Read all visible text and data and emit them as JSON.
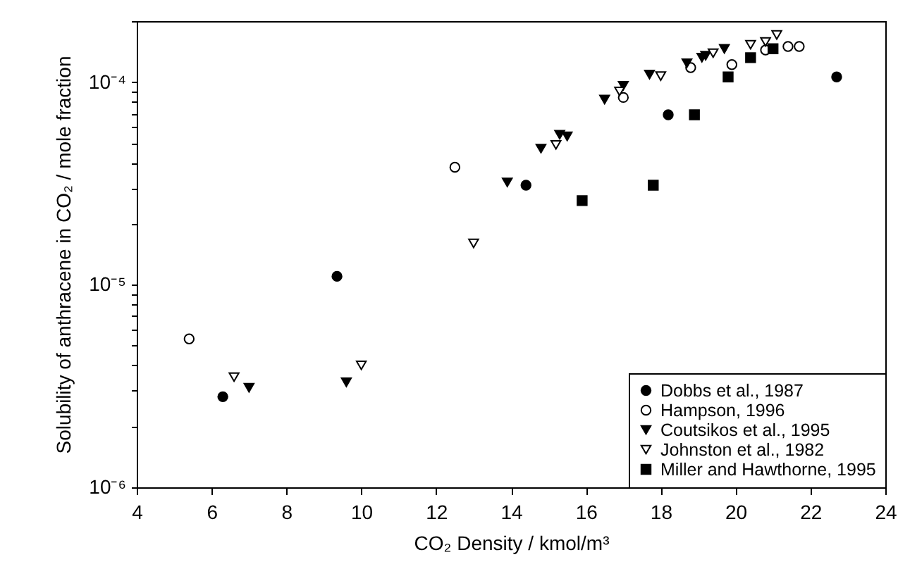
{
  "chart_data": {
    "type": "scatter",
    "xlabel": "CO₂ Density / kmol/m³",
    "ylabel": "Solubility of anthracene in CO₂ / mole fraction",
    "log": "y",
    "xlim": [
      4,
      24
    ],
    "xticks": [
      4,
      6,
      8,
      10,
      12,
      14,
      16,
      18,
      20,
      22,
      24
    ],
    "ylim": [
      1e-06,
      0.0002
    ],
    "yticks": [
      {
        "value": 1e-06,
        "label": "10⁻⁶"
      },
      {
        "value": 2e-06,
        "label": null
      },
      {
        "value": 3e-06,
        "label": null
      },
      {
        "value": 4e-06,
        "label": null
      },
      {
        "value": 5e-06,
        "label": null
      },
      {
        "value": 6e-06,
        "label": null
      },
      {
        "value": 7e-06,
        "label": null
      },
      {
        "value": 8e-06,
        "label": null
      },
      {
        "value": 9e-06,
        "label": null
      },
      {
        "value": 1e-05,
        "label": "10⁻⁵"
      },
      {
        "value": 2e-05,
        "label": null
      },
      {
        "value": 3e-05,
        "label": null
      },
      {
        "value": 4e-05,
        "label": null
      },
      {
        "value": 5e-05,
        "label": null
      },
      {
        "value": 6e-05,
        "label": null
      },
      {
        "value": 7e-05,
        "label": null
      },
      {
        "value": 8e-05,
        "label": null
      },
      {
        "value": 9e-05,
        "label": null
      },
      {
        "value": 0.0001,
        "label": "10⁻⁴"
      },
      {
        "value": 0.0002,
        "label": null
      }
    ],
    "grid": false,
    "legend": "bottom right",
    "series": [
      {
        "name": "Dobbs et al., 1987",
        "color": "#000000",
        "marker": "circle",
        "x": [
          6.3,
          9.35,
          14.4,
          18.2,
          22.7
        ],
        "values": [
          2.8e-06,
          1.1e-05,
          3.1e-05,
          6.9e-05,
          0.000106
        ]
      },
      {
        "name": "Hampson, 1996",
        "color": "#000000",
        "marker": "circle-open",
        "x": [
          5.4,
          12.5,
          17.0,
          18.8,
          19.9,
          20.8,
          21.4,
          21.7
        ],
        "values": [
          5.4e-06,
          3.8e-05,
          8.4e-05,
          0.000118,
          0.000122,
          0.000144,
          0.00015,
          0.00015
        ]
      },
      {
        "name": "Coutsikos et al., 1995",
        "color": "#000000",
        "marker": "triangle-down",
        "x": [
          7.0,
          9.6,
          13.9,
          14.8,
          15.3,
          15.5,
          16.5,
          17.0,
          17.7,
          18.7,
          19.1,
          19.2,
          19.7
        ],
        "values": [
          3.1e-06,
          3.3e-06,
          3.2e-05,
          4.7e-05,
          5.5e-05,
          5.4e-05,
          8.2e-05,
          9.6e-05,
          0.000109,
          0.000124,
          0.000132,
          0.000135,
          0.000146
        ]
      },
      {
        "name": "Johnston et al., 1982",
        "color": "#000000",
        "marker": "triangle-down-open",
        "x": [
          6.6,
          10.0,
          13.0,
          15.2,
          16.9,
          18.0,
          19.4,
          20.4,
          20.8,
          21.1
        ],
        "values": [
          3.5e-06,
          4e-06,
          1.6e-05,
          4.9e-05,
          9e-05,
          0.000107,
          0.000139,
          0.000153,
          0.000158,
          0.000171
        ]
      },
      {
        "name": "Miller and Hawthorne, 1995",
        "color": "#000000",
        "marker": "square",
        "x": [
          15.9,
          17.8,
          18.9,
          19.8,
          20.4,
          21.0
        ],
        "values": [
          2.6e-05,
          3.1e-05,
          6.9e-05,
          0.000106,
          0.000132,
          0.000146
        ]
      }
    ]
  }
}
